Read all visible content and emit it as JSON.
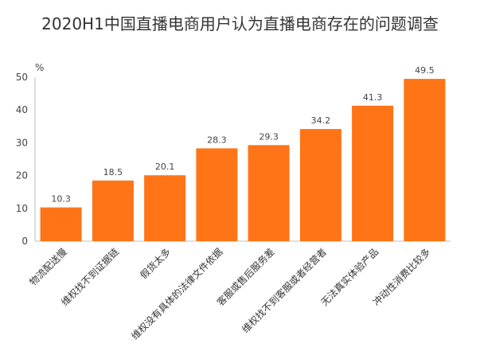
{
  "chart_data": {
    "type": "bar",
    "title": "2020H1中国直播电商用户认为直播电商存在的问题调查",
    "ylabel": "%",
    "ylim": [
      0,
      50
    ],
    "yticks": [
      0,
      10,
      20,
      30,
      40,
      50
    ],
    "grid": false,
    "categories": [
      "物流配送慢",
      "维权找不到证据链",
      "假货太多",
      "维权没有具体的法律文件依据",
      "客服或售后服务差",
      "维权找不到客服或者经营者",
      "无法真实体验产品",
      "冲动性消费比较多"
    ],
    "values": [
      10.3,
      18.5,
      20.1,
      28.3,
      29.3,
      34.2,
      41.3,
      49.5
    ],
    "colors": {
      "bar": "#FF7416",
      "axis": "#bfbfbf",
      "text": "#444444"
    }
  }
}
